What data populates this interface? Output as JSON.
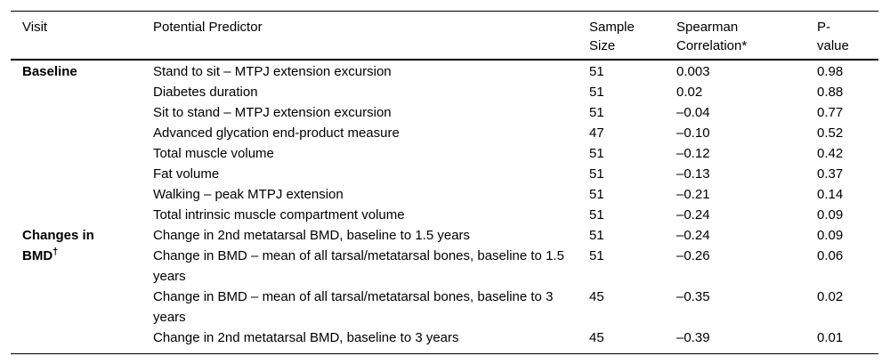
{
  "table": {
    "header": {
      "visit": "Visit",
      "predictor": "Potential Predictor",
      "sample_size": [
        "Sample",
        "Size"
      ],
      "spearman": [
        "Spearman",
        "Correlation*"
      ],
      "pvalue": [
        "P-",
        "value"
      ]
    },
    "groups": [
      {
        "label_lines": [
          "Baseline"
        ],
        "sup": "",
        "rowspan": 8
      },
      {
        "label_lines": [
          "Changes in",
          "BMD"
        ],
        "sup": "†",
        "rowspan": 4
      }
    ],
    "rows": [
      {
        "predictor": "Stand to sit – MTPJ extension excursion",
        "n": "51",
        "rho": "0.003",
        "p": "0.98"
      },
      {
        "predictor": "Diabetes duration",
        "n": "51",
        "rho": "0.02",
        "p": "0.88"
      },
      {
        "predictor": "Sit to stand – MTPJ extension excursion",
        "n": "51",
        "rho": "–0.04",
        "p": "0.77"
      },
      {
        "predictor": "Advanced glycation end-product measure",
        "n": "47",
        "rho": "–0.10",
        "p": "0.52"
      },
      {
        "predictor": "Total muscle volume",
        "n": "51",
        "rho": "–0.12",
        "p": "0.42"
      },
      {
        "predictor": "Fat volume",
        "n": "51",
        "rho": "–0.13",
        "p": "0.37"
      },
      {
        "predictor": "Walking – peak MTPJ extension",
        "n": "51",
        "rho": "–0.21",
        "p": "0.14"
      },
      {
        "predictor": "Total intrinsic muscle compartment volume",
        "n": "51",
        "rho": "–0.24",
        "p": "0.09"
      },
      {
        "predictor": "Change in 2nd metatarsal BMD, baseline to 1.5 years",
        "n": "51",
        "rho": "–0.24",
        "p": "0.09"
      },
      {
        "predictor": "Change in BMD – mean of all tarsal/metatarsal bones, baseline to 1.5 years",
        "n": "51",
        "rho": "–0.26",
        "p": "0.06"
      },
      {
        "predictor": "Change in BMD – mean of all tarsal/metatarsal bones, baseline to 3 years",
        "n": "45",
        "rho": "–0.35",
        "p": "0.02"
      },
      {
        "predictor": "Change in 2nd metatarsal BMD, baseline to 3 years",
        "n": "45",
        "rho": "–0.39",
        "p": "0.01"
      }
    ],
    "colors": {
      "text": "#000000",
      "background": "#ffffff",
      "rule": "#000000"
    }
  }
}
